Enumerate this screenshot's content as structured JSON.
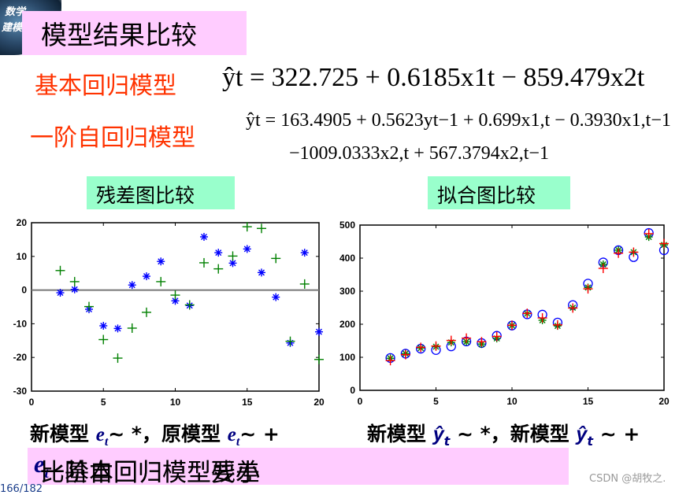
{
  "slide": {
    "logo_text": [
      "数学",
      "建模"
    ],
    "title": "模型结果比较",
    "model1": {
      "label": "基本回归模型",
      "formula": "ŷt = 322.725 + 0.6185x1t − 859.479x2t"
    },
    "model2": {
      "label": "一阶自回归模型",
      "formula_line1": "ŷt = 163.4905 + 0.5623yt−1 + 0.699x1,t − 0.3930x1,t−1",
      "formula_line2": "−1009.0333x2,t + 567.3794x2,t−1"
    },
    "residual_section_label": "残差图比较",
    "fit_section_label": "拟合图比较",
    "residual_caption": {
      "prefix_new": "新模型 ",
      "sym": "e",
      "sub": "t",
      "mid": "~ *，原模型 ",
      "suffix": "~ +"
    },
    "fit_caption": {
      "prefix_new": "新模型 ",
      "sym": "ŷ",
      "sub": "t",
      "mid": " ~ *，新模型 ",
      "suffix": " ~ +"
    },
    "conclusion": {
      "before": "一阶自回归模型残差",
      "sym": "e",
      "sub": "t",
      "after": "比基本回归模型要小"
    },
    "watermark": "CSDN @胡牧之.",
    "page_number": "166/182"
  },
  "chart_data": [
    {
      "type": "scatter",
      "title": "残差图比较",
      "xlabel": "",
      "ylabel": "",
      "xlim": [
        0,
        20
      ],
      "ylim": [
        -30,
        20
      ],
      "xticks": [
        0,
        5,
        10,
        15,
        20
      ],
      "yticks": [
        -30,
        -20,
        -10,
        0,
        10,
        20
      ],
      "zero_line": true,
      "grid": false,
      "series": [
        {
          "name": "新模型 e_t (*)",
          "marker": "*",
          "color": "#0000ff",
          "x": [
            2,
            3,
            4,
            5,
            6,
            7,
            8,
            9,
            10,
            11,
            12,
            13,
            14,
            15,
            16,
            17,
            18,
            19,
            20
          ],
          "y": [
            -0.8,
            0.2,
            -5.7,
            -10.6,
            -11.4,
            1.5,
            4.1,
            8.5,
            -3.2,
            -4.6,
            15.8,
            11.1,
            8.0,
            12.2,
            5.2,
            -2.1,
            -15.7,
            11.1,
            -12.4
          ]
        },
        {
          "name": "原模型 e_t (+)",
          "marker": "+",
          "color": "#008000",
          "x": [
            2,
            3,
            4,
            5,
            6,
            7,
            8,
            9,
            10,
            11,
            12,
            13,
            14,
            15,
            16,
            17,
            18,
            19,
            20
          ],
          "y": [
            5.8,
            2.5,
            -4.9,
            -14.7,
            -20.2,
            -11.3,
            -6.6,
            2.5,
            -1.5,
            -4.4,
            8.1,
            6.3,
            10.1,
            18.8,
            18.3,
            9.4,
            -15.2,
            1.8,
            -20.6
          ]
        }
      ]
    },
    {
      "type": "scatter",
      "title": "拟合图比较",
      "xlabel": "",
      "ylabel": "",
      "xlim": [
        0,
        20
      ],
      "ylim": [
        0,
        500
      ],
      "xticks": [
        0,
        5,
        10,
        15,
        20
      ],
      "yticks": [
        0,
        100,
        200,
        300,
        400,
        500
      ],
      "grid": false,
      "series": [
        {
          "name": "实际值 (o)",
          "marker": "o",
          "color": "#0000ff",
          "x": [
            2,
            3,
            4,
            5,
            6,
            7,
            8,
            9,
            10,
            11,
            12,
            13,
            14,
            15,
            16,
            17,
            18,
            19,
            20
          ],
          "y": [
            98,
            111,
            126,
            122,
            133,
            148,
            143,
            165,
            196,
            230,
            229,
            205,
            258,
            323,
            387,
            424,
            403,
            476,
            424
          ]
        },
        {
          "name": "新模型 ŷ_t (*)",
          "marker": "*",
          "color": "#008000",
          "x": [
            2,
            3,
            4,
            5,
            6,
            7,
            8,
            9,
            10,
            11,
            12,
            13,
            14,
            15,
            16,
            17,
            18,
            19,
            20
          ],
          "y": [
            97,
            111,
            128,
            132,
            145,
            147,
            140,
            157,
            196,
            232,
            212,
            195,
            250,
            311,
            381,
            424,
            418,
            464,
            440
          ]
        },
        {
          "name": "原模型 ŷ_t (+)",
          "marker": "+",
          "color": "#ff0000",
          "x": [
            2,
            3,
            4,
            5,
            6,
            7,
            8,
            9,
            10,
            11,
            12,
            13,
            14,
            15,
            16,
            17,
            18,
            19,
            20
          ],
          "y": [
            90,
            108,
            130,
            134,
            151,
            158,
            147,
            163,
            197,
            233,
            219,
            198,
            249,
            307,
            369,
            415,
            418,
            474,
            444
          ]
        }
      ]
    }
  ]
}
